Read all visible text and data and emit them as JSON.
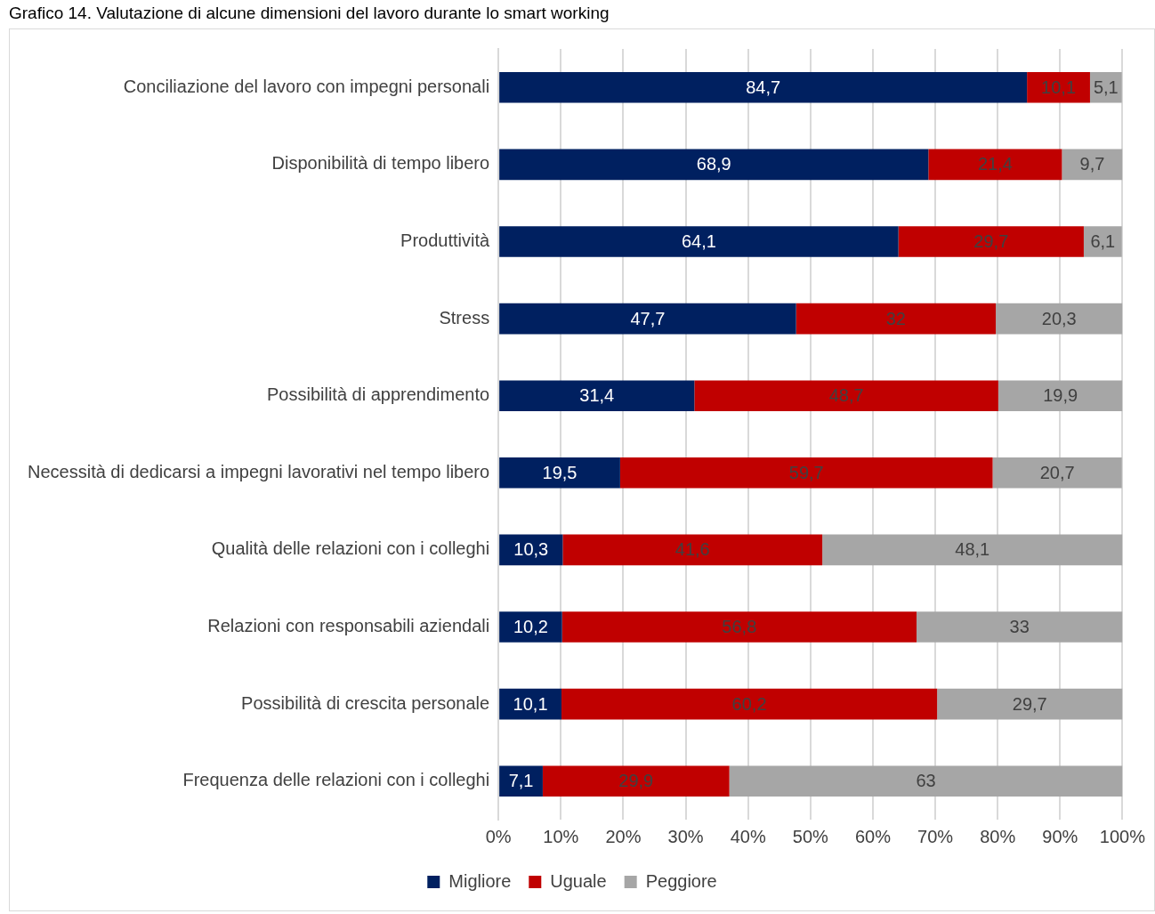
{
  "chart_data": {
    "type": "bar",
    "orientation": "horizontal",
    "stacked": true,
    "title": "Grafico 14. Valutazione di alcune dimensioni del lavoro durante lo smart working",
    "categories": [
      "Conciliazione del lavoro con impegni personali",
      "Disponibilità di tempo libero",
      "Produttività",
      "Stress",
      "Possibilità di apprendimento",
      "Necessità di dedicarsi a impegni lavorativi nel tempo libero",
      "Qualità delle relazioni con i colleghi",
      "Relazioni con responsabili aziendali",
      "Possibilità di crescita personale",
      "Frequenza delle relazioni con i colleghi"
    ],
    "series": [
      {
        "name": "Migliore",
        "color": "#002060",
        "values": [
          84.7,
          68.9,
          64.1,
          47.7,
          31.4,
          19.5,
          10.3,
          10.2,
          10.1,
          7.1
        ],
        "value_labels": [
          "84,7",
          "68,9",
          "64,1",
          "47,7",
          "31,4",
          "19,5",
          "10,3",
          "10,2",
          "10,1",
          "7,1"
        ]
      },
      {
        "name": "Uguale",
        "color": "#c00000",
        "values": [
          10.1,
          21.4,
          29.7,
          32,
          48.7,
          59.7,
          41.6,
          56.8,
          60.2,
          29.9
        ],
        "value_labels": [
          "10,1",
          "21,4",
          "29,7",
          "32",
          "48,7",
          "59,7",
          "41,6",
          "56,8",
          "60,2",
          "29,9"
        ]
      },
      {
        "name": "Peggiore",
        "color": "#a6a6a6",
        "values": [
          5.1,
          9.7,
          6.1,
          20.3,
          19.9,
          20.7,
          48.1,
          33,
          29.7,
          63
        ],
        "value_labels": [
          "5,1",
          "9,7",
          "6,1",
          "20,3",
          "19,9",
          "20,7",
          "48,1",
          "33",
          "29,7",
          "63"
        ]
      }
    ],
    "xlim": [
      0,
      100
    ],
    "xticks": [
      {
        "value": 0,
        "label": "0%"
      },
      {
        "value": 10,
        "label": "10%"
      },
      {
        "value": 20,
        "label": "20%"
      },
      {
        "value": 30,
        "label": "30%"
      },
      {
        "value": 40,
        "label": "40%"
      },
      {
        "value": 50,
        "label": "50%"
      },
      {
        "value": 60,
        "label": "60%"
      },
      {
        "value": 70,
        "label": "70%"
      },
      {
        "value": 80,
        "label": "80%"
      },
      {
        "value": 90,
        "label": "90%"
      },
      {
        "value": 100,
        "label": "100%"
      }
    ],
    "grid": "x",
    "legend": "bottom"
  }
}
